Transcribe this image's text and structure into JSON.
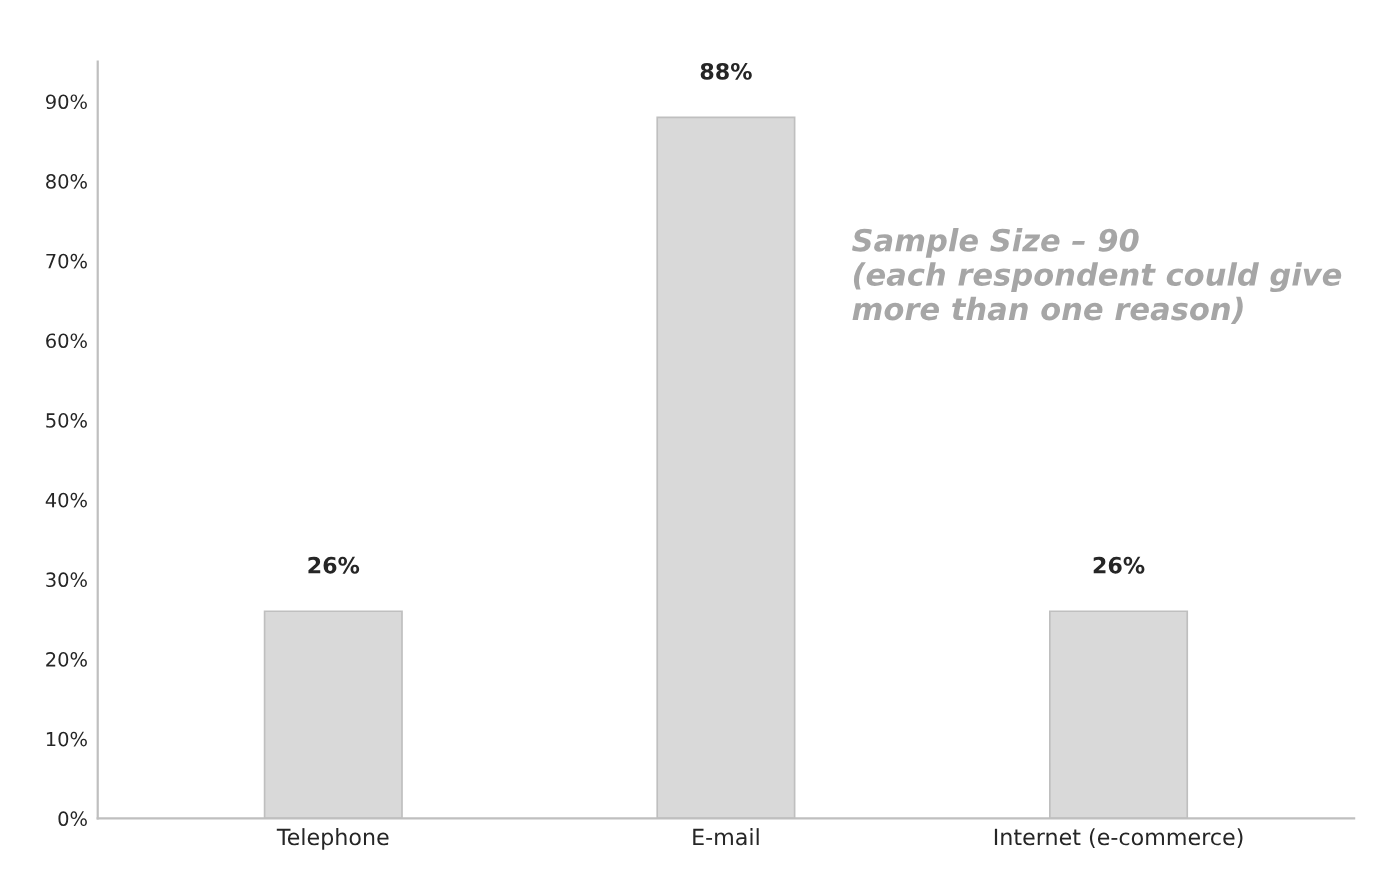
{
  "chart_data": {
    "type": "bar",
    "categories": [
      "Telephone",
      "E-mail",
      "Internet (e-commerce)"
    ],
    "values": [
      26,
      88,
      26
    ],
    "value_labels": [
      "26%",
      "88%",
      "26%"
    ],
    "color": "#d9d9d9",
    "ylim": [
      0,
      95
    ],
    "yticks": [
      {
        "value": 0,
        "label": "0%"
      },
      {
        "value": 10,
        "label": "10%"
      },
      {
        "value": 20,
        "label": "20%"
      },
      {
        "value": 30,
        "label": "30%"
      },
      {
        "value": 40,
        "label": "40%"
      },
      {
        "value": 50,
        "label": "50%"
      },
      {
        "value": 60,
        "label": "60%"
      },
      {
        "value": 70,
        "label": "70%"
      },
      {
        "value": 80,
        "label": "80%"
      },
      {
        "value": 90,
        "label": "90%"
      }
    ],
    "annotations": [
      "Sample Size – 90\n(each respondent could give\nmore than one reason)"
    ],
    "grid": false,
    "legend": false
  }
}
